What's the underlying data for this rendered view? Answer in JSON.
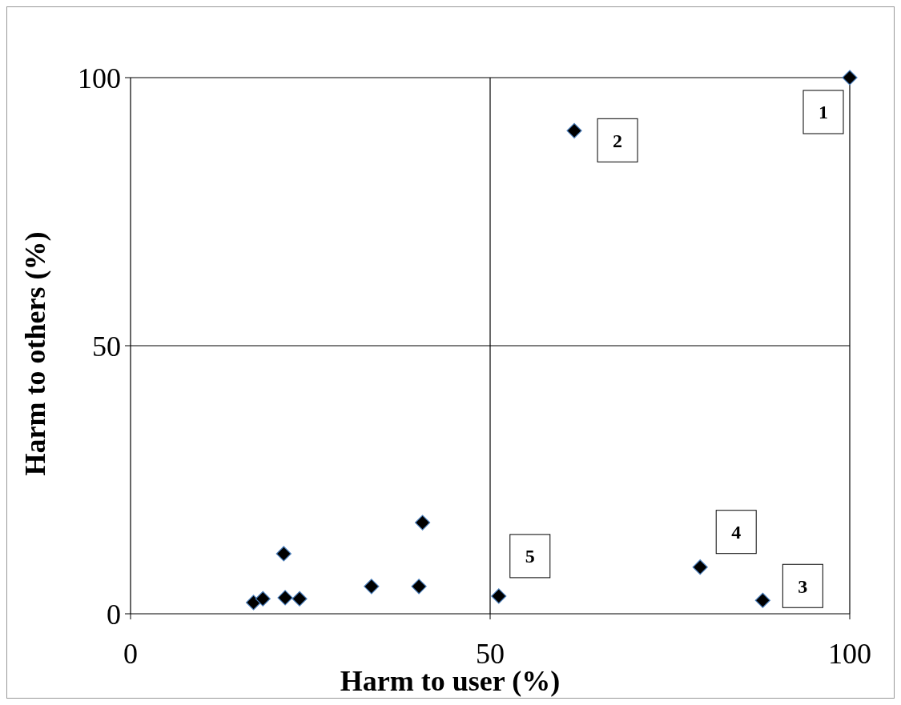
{
  "chart_data": {
    "type": "scatter",
    "xlabel": "Harm to user (%)",
    "ylabel": "Harm to others (%)",
    "x": [
      100,
      61.7,
      87.9,
      79.2,
      51.2,
      17.1,
      18.4,
      21.3,
      21.5,
      23.5,
      33.5,
      40.1,
      40.6
    ],
    "values": [
      100,
      90.1,
      2.5,
      8.7,
      3.3,
      2.1,
      2.8,
      11.2,
      3.0,
      2.8,
      5.1,
      5.1,
      17.0
    ],
    "color": "#000000",
    "marker": "diamond",
    "xlim": [
      0,
      100
    ],
    "ylim": [
      0,
      100
    ],
    "xticks": [
      0,
      50,
      100
    ],
    "yticks": [
      0,
      50,
      100
    ],
    "grid": true,
    "annotations": [
      {
        "text": "1",
        "x": 100,
        "y": 100
      },
      {
        "text": "2",
        "x": 61.7,
        "y": 90.1
      },
      {
        "text": "3",
        "x": 87.9,
        "y": 2.5
      },
      {
        "text": "4",
        "x": 79.2,
        "y": 8.7
      },
      {
        "text": "5",
        "x": 51.2,
        "y": 3.3
      }
    ]
  }
}
